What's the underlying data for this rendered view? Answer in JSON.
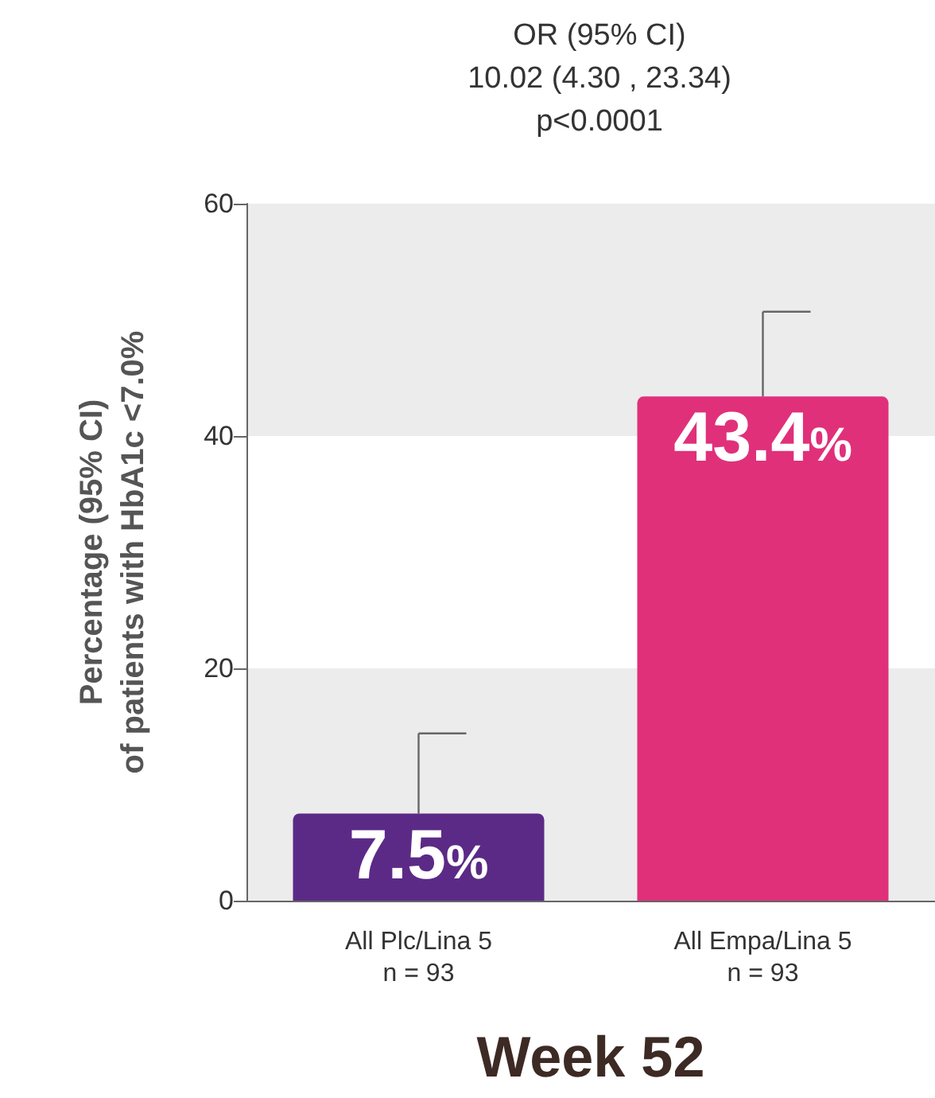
{
  "chart_data": {
    "type": "bar",
    "title": "OR (95% CI)",
    "annotations": [
      "10.02 (4.30 , 23.34)",
      "p<0.0001"
    ],
    "categories": [
      "All Plc/Lina 5\nn = 93",
      "All Empa/Lina 5\nn = 93"
    ],
    "values": [
      7.5,
      43.4
    ],
    "colors": [
      "#5b2a86",
      "#e0307a"
    ],
    "errors": [
      [
        7.5,
        14.4
      ],
      [
        43.4,
        50.7
      ]
    ],
    "value_labels": [
      "7.5%",
      "43.4%"
    ],
    "xlabel": "Week 52",
    "ylabel": "Percentage (95% CI)\nof patients with HbA1c <7.0%",
    "ylim": [
      0,
      60
    ],
    "yticks": [
      0,
      20,
      40,
      60
    ],
    "bands": [
      {
        "axis": "y",
        "from": 0,
        "to": 20,
        "color": "#ececec"
      },
      {
        "axis": "y",
        "from": 40,
        "to": 60,
        "color": "#ececec"
      }
    ]
  }
}
